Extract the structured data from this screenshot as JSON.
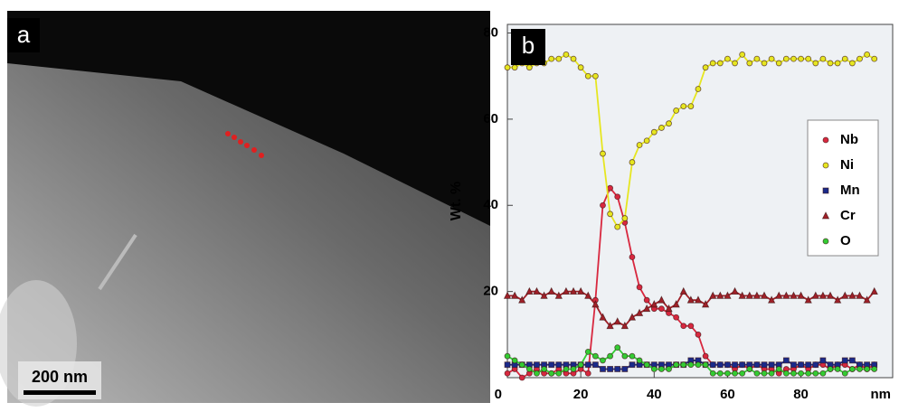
{
  "image_panel": {
    "label": "a",
    "scale_bar": "200 nm"
  },
  "chart_data": {
    "type": "line",
    "panel_label": "b",
    "ylabel": "Wt. %",
    "xlabel": "nm",
    "x": [
      0,
      2,
      4,
      6,
      8,
      10,
      12,
      14,
      16,
      18,
      20,
      22,
      24,
      26,
      28,
      30,
      32,
      34,
      36,
      38,
      40,
      42,
      44,
      46,
      48,
      50,
      52,
      54,
      56,
      58,
      60,
      62,
      64,
      66,
      68,
      70,
      72,
      74,
      76,
      78,
      80,
      82,
      84,
      86,
      88,
      90,
      92,
      94,
      96,
      98,
      100
    ],
    "xlim": [
      0,
      105
    ],
    "xticks": [
      0,
      20,
      40,
      60,
      80
    ],
    "ylim": [
      0,
      82
    ],
    "yticks": [
      20,
      40,
      60,
      80
    ],
    "grid": false,
    "legend": "right",
    "series": [
      {
        "name": "Nb",
        "color": "#d8283f",
        "marker": "circle",
        "values": [
          1,
          2,
          0,
          1,
          2,
          1,
          1,
          2,
          1,
          1,
          2,
          1,
          18,
          40,
          44,
          42,
          36,
          28,
          21,
          18,
          16,
          16,
          15,
          14,
          12,
          12,
          10,
          5,
          3,
          3,
          3,
          2,
          3,
          2,
          3,
          2,
          2,
          1,
          2,
          2,
          3,
          2,
          3,
          3,
          2,
          3,
          3,
          2,
          3,
          2,
          3
        ]
      },
      {
        "name": "Ni",
        "color": "#e6e620",
        "marker": "circle",
        "values": [
          72,
          72,
          73,
          72,
          73,
          73,
          74,
          74,
          75,
          74,
          72,
          70,
          70,
          52,
          38,
          35,
          37,
          50,
          54,
          55,
          57,
          58,
          59,
          62,
          63,
          63,
          67,
          72,
          73,
          73,
          74,
          73,
          75,
          73,
          74,
          73,
          74,
          73,
          74,
          74,
          74,
          74,
          73,
          74,
          73,
          73,
          74,
          73,
          74,
          75,
          74
        ]
      },
      {
        "name": "Mn",
        "color": "#1a2a8a",
        "marker": "square",
        "values": [
          3,
          3,
          3,
          3,
          3,
          3,
          3,
          3,
          3,
          3,
          3,
          3,
          3,
          2,
          2,
          2,
          2,
          3,
          3,
          3,
          3,
          3,
          3,
          3,
          3,
          4,
          4,
          3,
          3,
          3,
          3,
          3,
          3,
          3,
          3,
          3,
          3,
          3,
          4,
          3,
          3,
          3,
          3,
          4,
          3,
          3,
          4,
          4,
          3,
          3,
          3
        ]
      },
      {
        "name": "Cr",
        "color": "#a02028",
        "marker": "triangle",
        "values": [
          19,
          19,
          18,
          20,
          20,
          19,
          20,
          19,
          20,
          20,
          20,
          19,
          17,
          14,
          12,
          13,
          12,
          14,
          15,
          16,
          17,
          18,
          16,
          17,
          20,
          18,
          18,
          17,
          19,
          19,
          19,
          20,
          19,
          19,
          19,
          19,
          18,
          19,
          19,
          19,
          19,
          18,
          19,
          19,
          19,
          18,
          19,
          19,
          19,
          18,
          20
        ]
      },
      {
        "name": "O",
        "color": "#33cc33",
        "marker": "circle",
        "values": [
          5,
          4,
          3,
          2,
          1,
          2,
          1,
          1,
          2,
          2,
          3,
          6,
          5,
          4,
          5,
          7,
          5,
          5,
          4,
          3,
          2,
          2,
          2,
          3,
          3,
          3,
          3,
          3,
          1,
          1,
          1,
          1,
          1,
          2,
          1,
          1,
          1,
          2,
          1,
          1,
          1,
          1,
          1,
          1,
          2,
          2,
          1,
          2,
          2,
          2,
          2
        ]
      }
    ]
  }
}
